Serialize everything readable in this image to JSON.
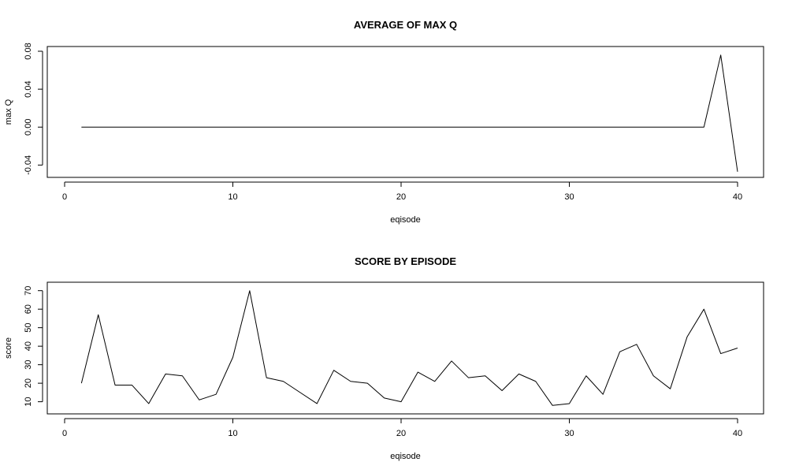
{
  "chart_data": [
    {
      "type": "line",
      "title": "AVERAGE OF MAX Q",
      "xlabel": "eqisode",
      "ylabel": "max Q",
      "xlim": [
        0,
        40
      ],
      "ylim": [
        -0.048,
        0.08
      ],
      "x_ticks": [
        0,
        10,
        20,
        30,
        40
      ],
      "x_tick_labels": [
        "0",
        "10",
        "20",
        "30",
        "40"
      ],
      "y_ticks": [
        -0.04,
        0.0,
        0.04,
        0.08
      ],
      "y_tick_labels": [
        "-0.04",
        "0.00",
        "0.04",
        "0.08"
      ],
      "grid": false,
      "series": [
        {
          "x": [
            1,
            2,
            3,
            4,
            5,
            6,
            7,
            8,
            9,
            10,
            11,
            12,
            13,
            14,
            15,
            16,
            17,
            18,
            19,
            20,
            21,
            22,
            23,
            24,
            25,
            26,
            27,
            28,
            29,
            30,
            31,
            32,
            33,
            34,
            35,
            36,
            37,
            38,
            39,
            40
          ],
          "values": [
            0,
            0,
            0,
            0,
            0,
            0,
            0,
            0,
            0,
            0,
            0,
            0,
            0,
            0,
            0,
            0,
            0,
            0,
            0,
            0,
            0,
            0,
            0,
            0,
            0,
            0,
            0,
            0,
            0,
            0,
            0,
            0,
            0,
            0,
            0,
            0,
            0,
            0,
            0.076,
            -0.047
          ]
        }
      ]
    },
    {
      "type": "line",
      "title": "SCORE BY EPISODE",
      "xlabel": "eqisode",
      "ylabel": "score",
      "xlim": [
        0,
        40
      ],
      "ylim": [
        6,
        72
      ],
      "x_ticks": [
        0,
        10,
        20,
        30,
        40
      ],
      "x_tick_labels": [
        "0",
        "10",
        "20",
        "30",
        "40"
      ],
      "y_ticks": [
        10,
        20,
        30,
        40,
        50,
        60,
        70
      ],
      "y_tick_labels": [
        "10",
        "20",
        "30",
        "40",
        "50",
        "60",
        "70"
      ],
      "grid": false,
      "series": [
        {
          "x": [
            1,
            2,
            3,
            4,
            5,
            6,
            7,
            8,
            9,
            10,
            11,
            12,
            13,
            14,
            15,
            16,
            17,
            18,
            19,
            20,
            21,
            22,
            23,
            24,
            25,
            26,
            27,
            28,
            29,
            30,
            31,
            32,
            33,
            34,
            35,
            36,
            37,
            38,
            39,
            40
          ],
          "values": [
            20,
            57,
            19,
            19,
            9,
            25,
            24,
            11,
            14,
            34,
            70,
            23,
            21,
            15,
            9,
            27,
            21,
            20,
            12,
            10,
            26,
            21,
            32,
            23,
            24,
            16,
            25,
            21,
            8,
            9,
            24,
            14,
            37,
            41,
            24,
            17,
            45,
            60,
            36,
            39
          ]
        }
      ]
    }
  ]
}
